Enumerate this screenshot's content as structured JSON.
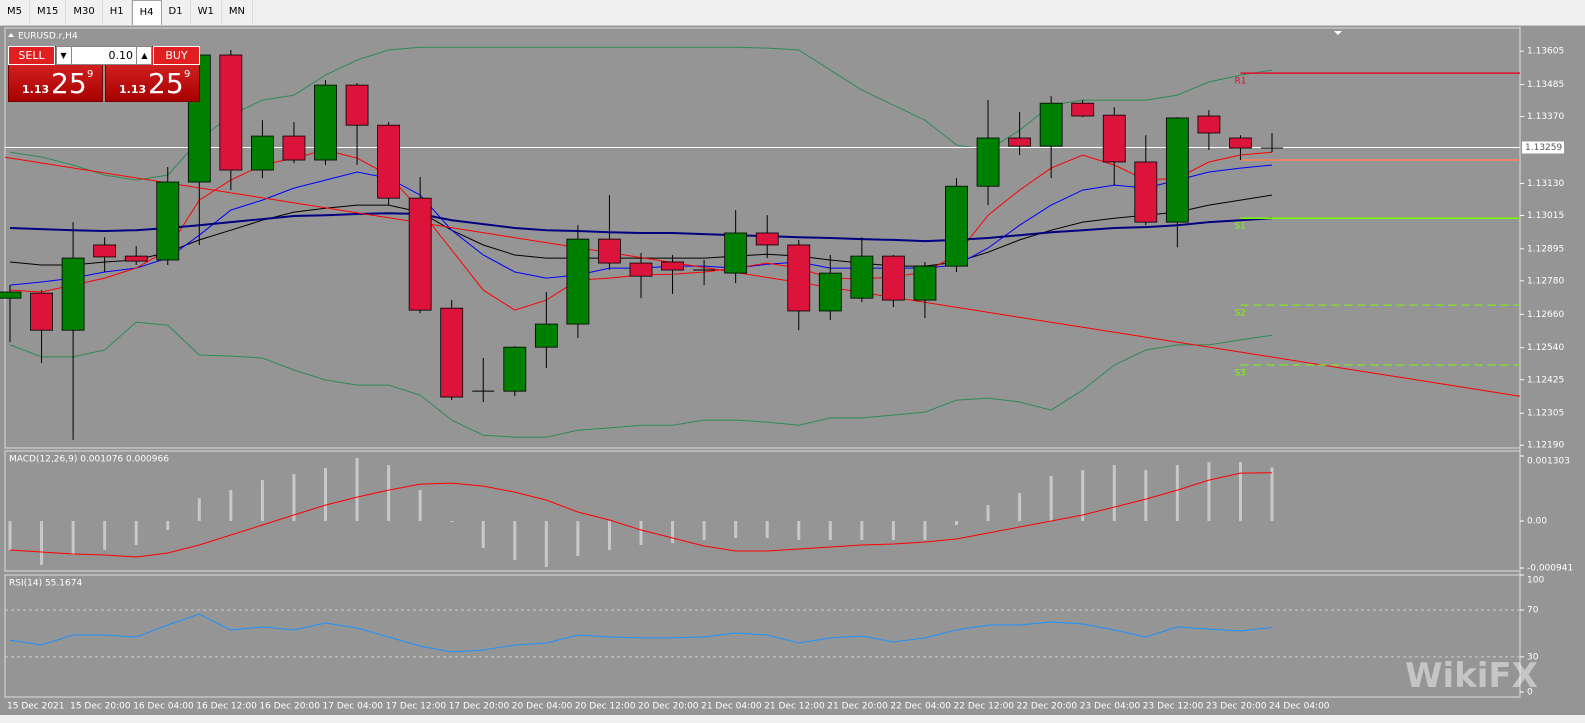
{
  "toolbar": {
    "items": [
      "M5",
      "M15",
      "M30",
      "H1",
      "H4",
      "D1",
      "W1",
      "MN"
    ],
    "active": "H4"
  },
  "trade": {
    "sell": "SELL",
    "buy": "BUY",
    "lot": "0.10",
    "sell_price": [
      "1.13",
      "25",
      "9"
    ],
    "buy_price": [
      "1.13",
      "25",
      "9"
    ]
  },
  "watermark": "WikiFX",
  "chart_data": [
    {
      "type": "candlestick",
      "title": "EURUSD.r,H4",
      "categories": [
        "15 Dec 2021",
        null,
        "15 Dec 20:00",
        null,
        "16 Dec 04:00",
        null,
        "16 Dec 12:00",
        null,
        "16 Dec 20:00",
        null,
        "17 Dec 04:00",
        null,
        "17 Dec 12:00",
        null,
        "17 Dec 20:00",
        null,
        "20 Dec 04:00",
        null,
        "20 Dec 12:00",
        null,
        "20 Dec 20:00",
        null,
        "21 Dec 04:00",
        null,
        "21 Dec 12:00",
        null,
        "21 Dec 20:00",
        null,
        "22 Dec 04:00",
        null,
        "22 Dec 12:00",
        null,
        "22 Dec 20:00",
        null,
        "23 Dec 04:00",
        null,
        "23 Dec 12:00",
        null,
        "23 Dec 20:00",
        null,
        "24 Dec 04:00"
      ],
      "open": [
        1.12718,
        1.12736,
        1.12603,
        1.12909,
        1.12869,
        1.12855,
        1.13135,
        1.13591,
        1.13178,
        1.133,
        1.13214,
        1.13483,
        1.13339,
        1.13077,
        1.12682,
        1.12384,
        1.12384,
        1.12542,
        1.12625,
        1.1293,
        1.12844,
        1.12848,
        1.12819,
        1.12808,
        1.12952,
        1.12909,
        1.12672,
        1.12718,
        1.12869,
        1.12711,
        1.12833,
        1.1312,
        1.13293,
        1.13264,
        1.13418,
        1.13375,
        1.13207,
        1.12991,
        1.13372,
        1.13293,
        1.13257
      ],
      "high": [
        1.12765,
        1.12747,
        1.12991,
        1.12937,
        1.12905,
        1.13189,
        1.13609,
        1.13609,
        1.13357,
        1.1335,
        1.13501,
        1.1349,
        1.1335,
        1.13153,
        1.12711,
        1.12503,
        1.12546,
        1.1274,
        1.1298,
        1.13088,
        1.1288,
        1.12873,
        1.12855,
        1.13034,
        1.13016,
        1.12927,
        1.12873,
        1.12937,
        1.12873,
        1.12848,
        1.13149,
        1.13429,
        1.13386,
        1.13443,
        1.13429,
        1.13404,
        1.13303,
        1.13368,
        1.13393,
        1.13303,
        1.13311
      ],
      "low": [
        1.1256,
        1.12485,
        1.12209,
        1.12812,
        1.12837,
        1.12837,
        1.12909,
        1.13106,
        1.13149,
        1.13203,
        1.13196,
        1.13196,
        1.13052,
        1.12664,
        1.12352,
        1.12345,
        1.12366,
        1.12467,
        1.12575,
        1.12819,
        1.12718,
        1.12733,
        1.12765,
        1.12772,
        1.12862,
        1.12603,
        1.12639,
        1.12704,
        1.12686,
        1.12647,
        1.12812,
        1.13052,
        1.13232,
        1.13149,
        1.13368,
        1.13124,
        1.1298,
        1.12901,
        1.1325,
        1.13214,
        1.13242
      ],
      "close": [
        1.1274,
        1.12603,
        1.12862,
        1.12866,
        1.12851,
        1.13135,
        1.13591,
        1.13178,
        1.133,
        1.13214,
        1.13483,
        1.13339,
        1.13077,
        1.12675,
        1.12363,
        1.12384,
        1.12542,
        1.12625,
        1.1293,
        1.12844,
        1.12797,
        1.12819,
        1.12819,
        1.12952,
        1.12909,
        1.12672,
        1.12808,
        1.12869,
        1.12711,
        1.12833,
        1.1312,
        1.13293,
        1.13264,
        1.13418,
        1.13372,
        1.13207,
        1.12991,
        1.13365,
        1.13311,
        1.13257,
        1.13257
      ],
      "up_color": "#008000",
      "down_color": "#dc143c",
      "lines": [
        {
          "color": "#2e8b57",
          "values": [
            1.13242,
            1.13225,
            1.13196,
            1.1316,
            1.13142,
            1.1316,
            1.13286,
            1.13375,
            1.13429,
            1.13447,
            1.13519,
            1.13573,
            1.13609,
            1.13619,
            1.13619,
            1.13619,
            1.13619,
            1.13619,
            1.13619,
            1.13619,
            1.13619,
            1.13619,
            1.13619,
            1.13619,
            1.13616,
            1.13609,
            1.13537,
            1.13465,
            1.13411,
            1.13357,
            1.13268,
            1.1325,
            1.13321,
            1.13411,
            1.13429,
            1.13429,
            1.13429,
            1.13447,
            1.13494,
            1.13519,
            1.13537
          ]
        },
        {
          "color": "#2e8b57",
          "values": [
            1.1255,
            1.12507,
            1.12507,
            1.12532,
            1.12632,
            1.12621,
            1.12514,
            1.1251,
            1.12503,
            1.1246,
            1.12424,
            1.12406,
            1.12406,
            1.1237,
            1.1228,
            1.12226,
            1.12219,
            1.12219,
            1.12244,
            1.12252,
            1.12262,
            1.12262,
            1.1228,
            1.1228,
            1.12273,
            1.12262,
            1.12288,
            1.12288,
            1.12298,
            1.12309,
            1.12352,
            1.12359,
            1.12345,
            1.12316,
            1.12388,
            1.12478,
            1.12532,
            1.1255,
            1.1255,
            1.12568,
            1.12585
          ]
        },
        {
          "color": "#000000",
          "values": [
            1.12848,
            1.12837,
            1.12837,
            1.12848,
            1.12855,
            1.12883,
            1.12927,
            1.12962,
            1.12998,
            1.13027,
            1.13041,
            1.13052,
            1.13052,
            1.13027,
            1.12962,
            1.12909,
            1.12873,
            1.12862,
            1.12862,
            1.12862,
            1.12862,
            1.12862,
            1.12862,
            1.12869,
            1.12876,
            1.12869,
            1.12855,
            1.12844,
            1.12833,
            1.12833,
            1.12848,
            1.12883,
            1.12927,
            1.12962,
            1.12991,
            1.13005,
            1.13016,
            1.13027,
            1.13052,
            1.1307,
            1.13088
          ]
        },
        {
          "color": "#0000ff",
          "values": [
            1.12765,
            1.12776,
            1.1279,
            1.12812,
            1.12826,
            1.12862,
            1.12944,
            1.13034,
            1.1307,
            1.13113,
            1.13142,
            1.13171,
            1.13149,
            1.13088,
            1.12962,
            1.12873,
            1.12812,
            1.1279,
            1.12801,
            1.12826,
            1.12826,
            1.12833,
            1.12833,
            1.12826,
            1.1284,
            1.12848,
            1.12826,
            1.12826,
            1.12826,
            1.12826,
            1.12837,
            1.12898,
            1.1298,
            1.13052,
            1.13106,
            1.13124,
            1.13113,
            1.13142,
            1.13171,
            1.13185,
            1.13196
          ]
        },
        {
          "color": "#ff0000",
          "values": [
            1.12747,
            1.1274,
            1.12765,
            1.1279,
            1.12826,
            1.12891,
            1.1307,
            1.13142,
            1.13196,
            1.13221,
            1.1325,
            1.13221,
            1.1316,
            1.13034,
            1.12891,
            1.12747,
            1.12675,
            1.12711,
            1.12783,
            1.1279,
            1.12801,
            1.12804,
            1.12812,
            1.12826,
            1.12844,
            1.12826,
            1.1279,
            1.12787,
            1.12794,
            1.12812,
            1.12873,
            1.13016,
            1.13106,
            1.13185,
            1.13232,
            1.13196,
            1.13142,
            1.13149,
            1.13207,
            1.13232,
            1.13242
          ]
        },
        {
          "color": "#000080",
          "width": 2,
          "values": [
            1.1297,
            1.12966,
            1.12962,
            1.12959,
            1.12962,
            1.1297,
            1.1298,
            1.12991,
            1.13002,
            1.13013,
            1.13016,
            1.1302,
            1.13023,
            1.1302,
            1.12998,
            1.12984,
            1.1297,
            1.12962,
            1.12959,
            1.12955,
            1.12952,
            1.12952,
            1.12948,
            1.12944,
            1.12941,
            1.12937,
            1.12934,
            1.1293,
            1.12927,
            1.12923,
            1.12927,
            1.12934,
            1.12944,
            1.12955,
            1.12962,
            1.1297,
            1.12973,
            1.1298,
            1.12991,
            1.12998,
            1.13005
          ]
        }
      ],
      "trendline": {
        "color": "#ff0000",
        "values": [
          1.13224,
          1.12366
        ]
      },
      "levels": [
        {
          "label": "R1",
          "value": 1.13526,
          "color": "#e0102f",
          "dashed": false
        },
        {
          "value": 1.13214,
          "color": "#ff7f50",
          "dashed": false
        },
        {
          "label": "S1",
          "value": 1.13005,
          "color": "#7cfc00",
          "dashed": false
        },
        {
          "label": "S2",
          "value": 1.12693,
          "color": "#7cfc00",
          "dashed": true
        },
        {
          "label": "S3",
          "value": 1.12478,
          "color": "#7cfc00",
          "dashed": true
        }
      ],
      "price": 1.13259,
      "ylim": [
        1.1218,
        1.13688
      ],
      "yticks": [
        1.13605,
        1.13485,
        {
          "value": 1.1337,
          "label": "1.13370"
        },
        {
          "value": 1.1313,
          "label": "1.13130"
        },
        1.13015,
        1.12895,
        {
          "value": 1.1278,
          "label": "1.12780"
        },
        {
          "value": 1.1266,
          "label": "1.12660"
        },
        {
          "value": 1.1254,
          "label": "1.12540"
        },
        1.12425,
        1.12305,
        {
          "value": 1.1219,
          "label": "1.12190"
        }
      ]
    },
    {
      "type": "macd",
      "title": "MACD(12,26,9) 0.001076 0.000966",
      "color": "#c8c8c8",
      "values": [
        -0.00058,
        -0.00088,
        -0.00068,
        -0.00058,
        -0.00048,
        -0.00018,
        0.00046,
        0.00062,
        0.00082,
        0.00094,
        0.00106,
        0.00126,
        0.00112,
        0.00062,
        -2e-05,
        -0.00054,
        -0.00078,
        -0.00092,
        -0.0007,
        -0.00058,
        -0.00048,
        -0.00044,
        -0.00038,
        -0.00034,
        -0.00034,
        -0.00038,
        -0.00038,
        -0.00038,
        -0.00038,
        -0.00038,
        -8e-05,
        0.00032,
        0.00056,
        0.0009,
        0.00102,
        0.00112,
        0.00102,
        0.00112,
        0.00118,
        0.00118,
        0.001076
      ],
      "signal": {
        "color": "#ff0000",
        "values": [
          -0.00058,
          -0.00062,
          -0.00066,
          -0.00068,
          -0.00072,
          -0.00064,
          -0.00048,
          -0.00028,
          -8e-05,
          0.00012,
          0.00032,
          0.00048,
          0.00062,
          0.00074,
          0.00076,
          0.0007,
          0.00058,
          0.00042,
          0.00018,
          2e-05,
          -0.00018,
          -0.00034,
          -0.0005,
          -0.0006,
          -0.0006,
          -0.00056,
          -0.00052,
          -0.00048,
          -0.00046,
          -0.00042,
          -0.00036,
          -0.00024,
          -0.00012,
          0,
          0.00012,
          0.00028,
          0.00044,
          0.00062,
          0.00082,
          0.00096,
          0.000966
        ]
      },
      "ylim": [
        -0.000941,
        0.001303
      ],
      "yticks": [
        0.001303,
        {
          "value": 0,
          "label": "0.00"
        },
        -0.000941
      ]
    },
    {
      "type": "line",
      "title": "RSI(14) 55.1674",
      "color": "#1e90ff",
      "values": [
        44.4,
        40.2,
        48.7,
        48.7,
        47.0,
        57.3,
        66.7,
        53.0,
        55.6,
        53.0,
        59.0,
        54.7,
        47.0,
        39.3,
        34.2,
        35.9,
        40.2,
        41.9,
        48.7,
        47.0,
        46.2,
        46.2,
        47.0,
        50.4,
        48.7,
        41.9,
        46.2,
        47.9,
        42.7,
        46.2,
        53.0,
        57.3,
        57.3,
        59.8,
        58.1,
        53.0,
        47.0,
        55.6,
        53.8,
        52.1,
        55.1674
      ],
      "ylim": [
        0,
        100
      ],
      "yticks": [
        100,
        70,
        30,
        0
      ],
      "grid": "dashed"
    }
  ]
}
